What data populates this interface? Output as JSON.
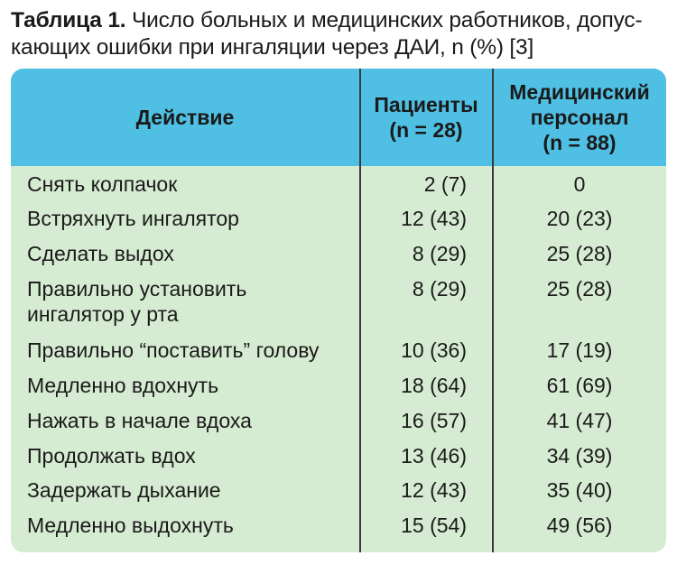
{
  "caption": {
    "label": "Таблица 1.",
    "line1": " Число больных и медицинских работников, допус-",
    "line2": "кающих ошибки при ингаляции через ДАИ, n (%) [3]"
  },
  "header": {
    "action": "Действие",
    "patients_line1": "Пациенты",
    "patients_line2": "(n = 28)",
    "medical_line1": "Медицинский",
    "medical_line2": "персонал",
    "medical_line3": "(n = 88)"
  },
  "rows": [
    {
      "action": "Снять колпачок",
      "action2": "",
      "patients": "2 (7)",
      "medical": "0"
    },
    {
      "action": "Встряхнуть ингалятор",
      "action2": "",
      "patients": "12 (43)",
      "medical": "20 (23)"
    },
    {
      "action": "Сделать выдох",
      "action2": "",
      "patients": "8 (29)",
      "medical": "25 (28)"
    },
    {
      "action": "Правильно установить",
      "action2": "ингалятор у рта",
      "patients": "8 (29)",
      "medical": "25 (28)"
    },
    {
      "action": "Правильно “поставить” голову",
      "action2": "",
      "patients": "10 (36)",
      "medical": "17 (19)"
    },
    {
      "action": "Медленно вдохнуть",
      "action2": "",
      "patients": "18 (64)",
      "medical": "61 (69)"
    },
    {
      "action": "Нажать в начале вдоха",
      "action2": "",
      "patients": "16 (57)",
      "medical": "41 (47)"
    },
    {
      "action": "Продолжать вдох",
      "action2": "",
      "patients": "13 (46)",
      "medical": "34 (39)"
    },
    {
      "action": "Задержать дыхание",
      "action2": "",
      "patients": "12 (43)",
      "medical": "35 (40)"
    },
    {
      "action": "Медленно выдохнуть",
      "action2": "",
      "patients": "15 (54)",
      "medical": "49 (56)"
    }
  ]
}
